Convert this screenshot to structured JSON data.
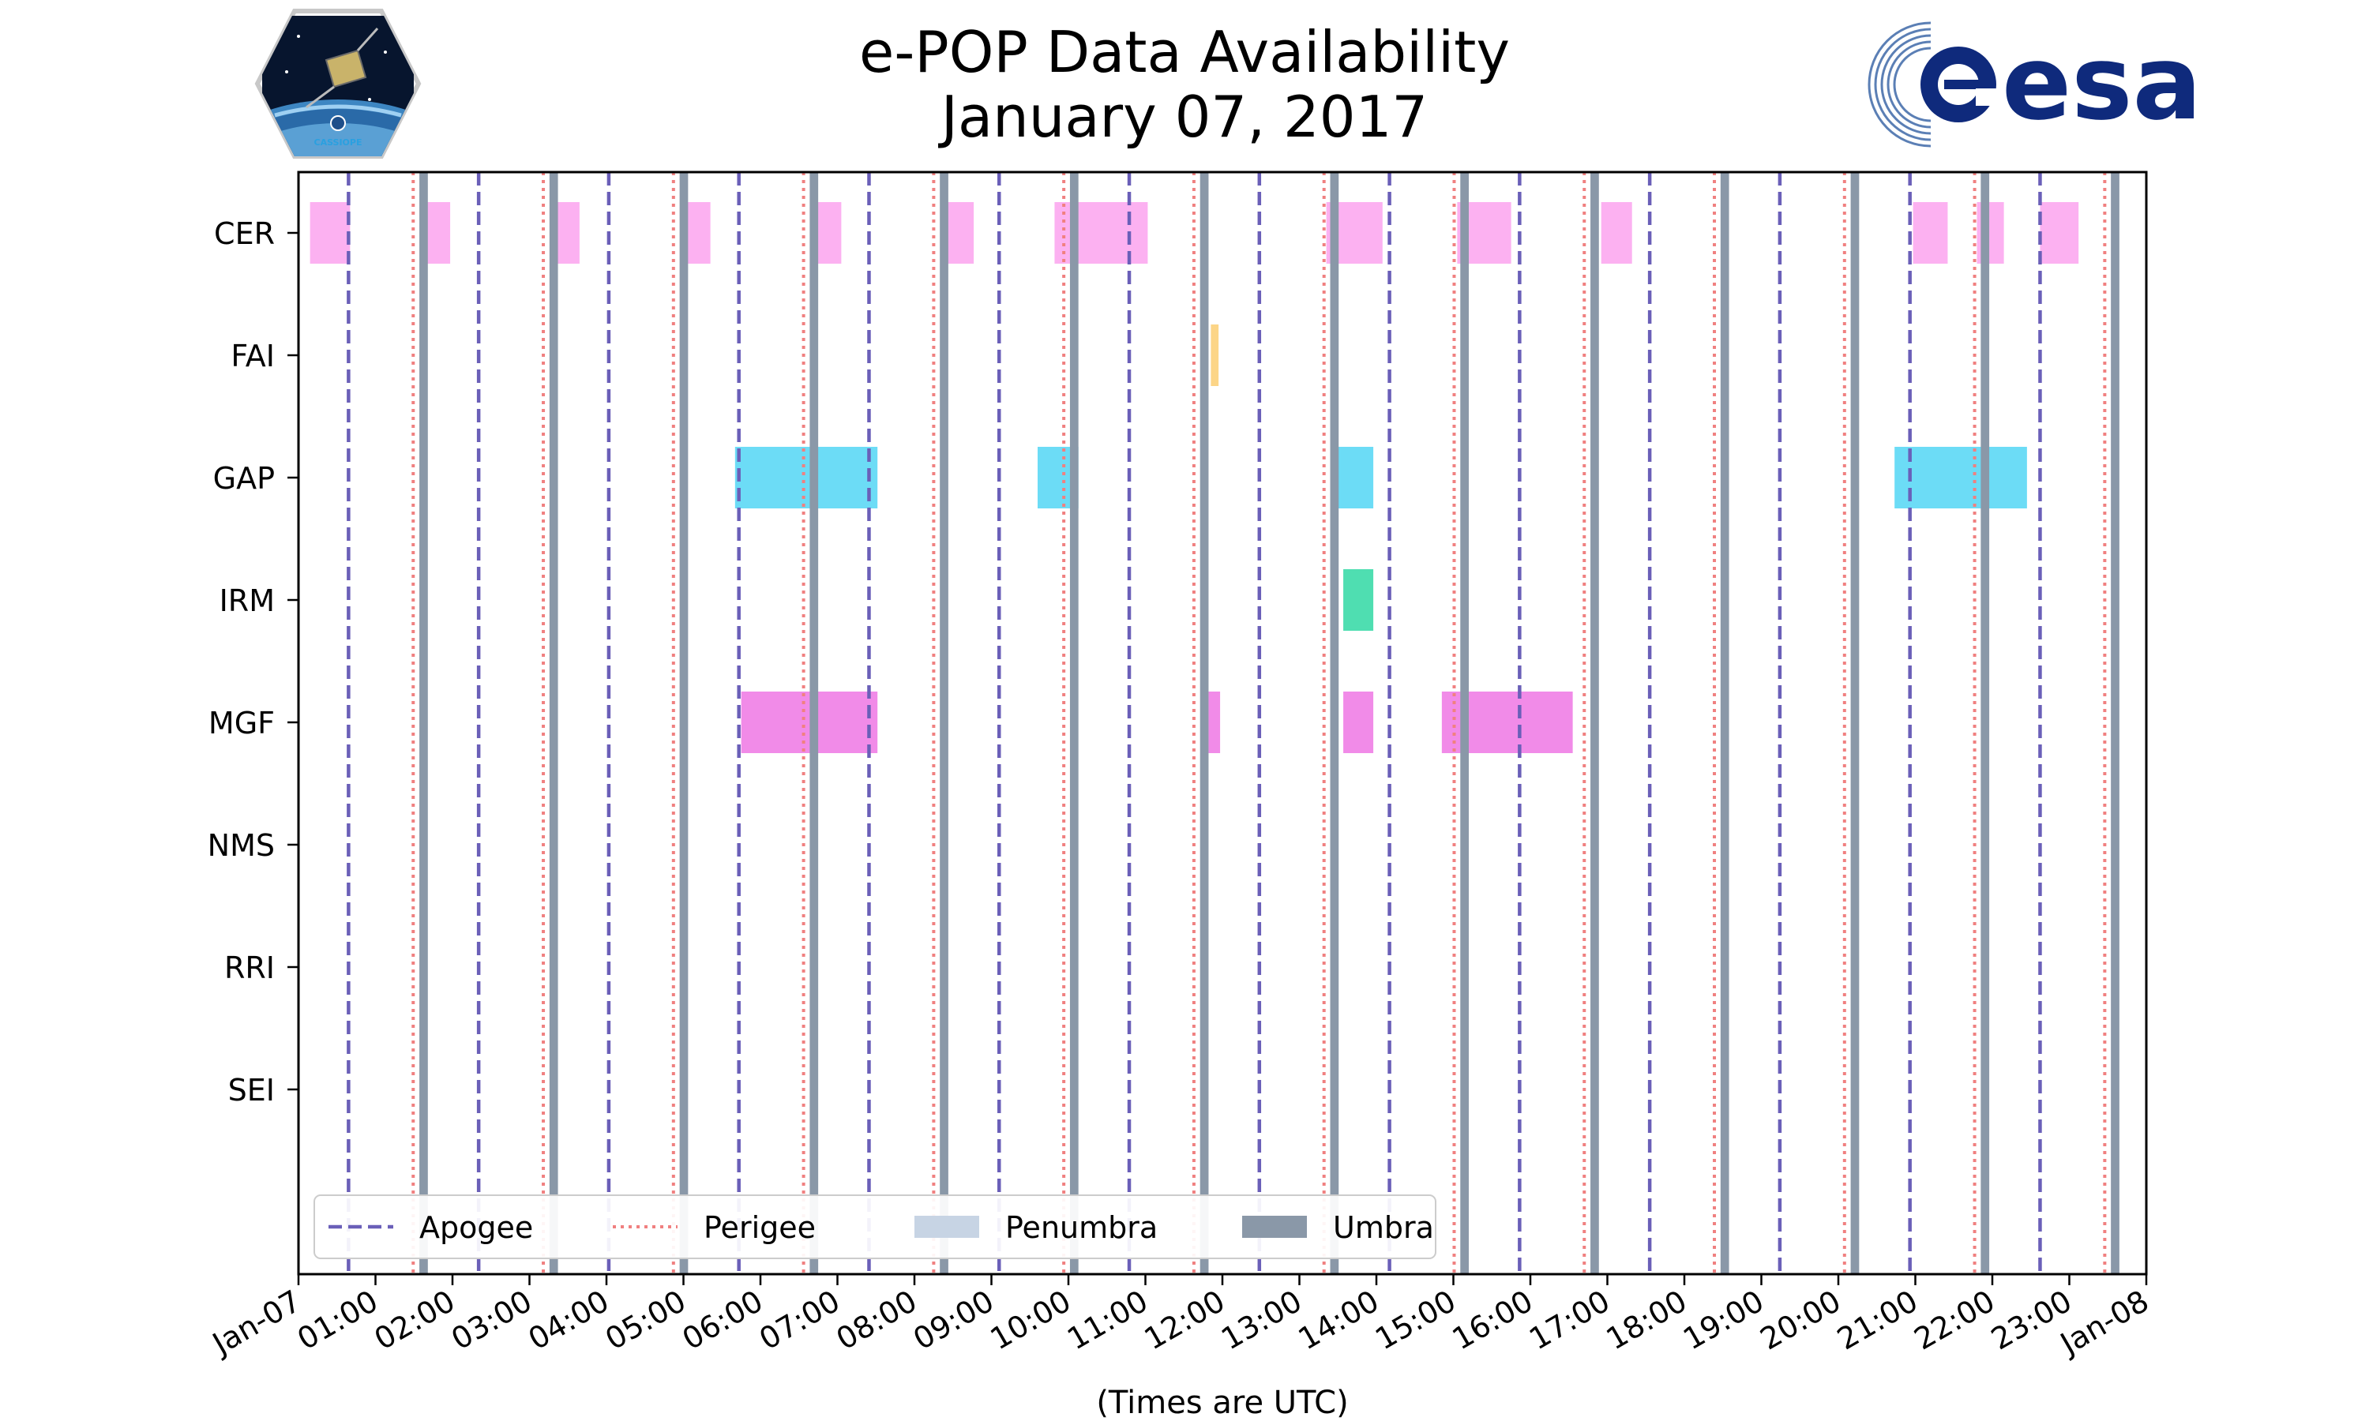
{
  "chart_data": {
    "type": "timeline",
    "title": "e-POP Data Availability",
    "subtitle": "January 07, 2017",
    "xlabel": "(Times are UTC)",
    "x_range_hours": [
      0,
      24
    ],
    "x_tick_labels": [
      "Jan-07",
      "01:00",
      "02:00",
      "03:00",
      "04:00",
      "05:00",
      "06:00",
      "07:00",
      "08:00",
      "09:00",
      "10:00",
      "11:00",
      "12:00",
      "13:00",
      "14:00",
      "15:00",
      "16:00",
      "17:00",
      "18:00",
      "19:00",
      "20:00",
      "21:00",
      "22:00",
      "23:00",
      "Jan-08"
    ],
    "instruments": [
      "CER",
      "FAI",
      "GAP",
      "IRM",
      "MGF",
      "NMS",
      "RRI",
      "SEI"
    ],
    "apogee_hours": [
      0.65,
      2.34,
      4.03,
      5.72,
      7.41,
      9.1,
      10.79,
      12.48,
      14.17,
      15.86,
      17.55,
      19.24,
      20.93,
      22.62
    ],
    "perigee_hours": [
      1.49,
      3.18,
      4.87,
      6.56,
      8.25,
      9.94,
      11.63,
      13.32,
      15.01,
      16.7,
      18.39,
      20.08,
      21.77,
      23.46
    ],
    "umbra_hours": [
      [
        1.57,
        1.68
      ],
      [
        3.26,
        3.37
      ],
      [
        4.95,
        5.06
      ],
      [
        6.64,
        6.75
      ],
      [
        8.33,
        8.44
      ],
      [
        10.02,
        10.13
      ],
      [
        11.71,
        11.82
      ],
      [
        13.4,
        13.51
      ],
      [
        15.09,
        15.2
      ],
      [
        16.78,
        16.89
      ],
      [
        18.47,
        18.58
      ],
      [
        20.16,
        20.27
      ],
      [
        21.85,
        21.96
      ],
      [
        23.54,
        23.65
      ]
    ],
    "series": [
      {
        "name": "CER",
        "color": "#fca8f0",
        "intervals": [
          [
            0.15,
            0.67
          ],
          [
            1.63,
            1.97
          ],
          [
            3.33,
            3.65
          ],
          [
            5.02,
            5.35
          ],
          [
            6.72,
            7.05
          ],
          [
            8.42,
            8.77
          ],
          [
            9.82,
            11.03
          ],
          [
            13.35,
            14.08
          ],
          [
            15.05,
            15.75
          ],
          [
            16.92,
            17.32
          ],
          [
            20.97,
            21.42
          ],
          [
            21.8,
            22.15
          ],
          [
            22.62,
            23.12
          ]
        ]
      },
      {
        "name": "FAI",
        "color": "#fcd07a",
        "intervals": [
          [
            11.85,
            11.95
          ]
        ]
      },
      {
        "name": "GAP",
        "color": "#5cd8f5",
        "intervals": [
          [
            5.67,
            7.52
          ],
          [
            9.6,
            10.13
          ],
          [
            13.4,
            13.96
          ],
          [
            20.73,
            22.45
          ]
        ]
      },
      {
        "name": "IRM",
        "color": "#3cdaa8",
        "intervals": [
          [
            13.57,
            13.96
          ]
        ]
      },
      {
        "name": "MGF",
        "color": "#f07ee6",
        "intervals": [
          [
            5.75,
            7.52
          ],
          [
            11.82,
            11.97
          ],
          [
            13.57,
            13.96
          ],
          [
            14.85,
            16.55
          ]
        ]
      },
      {
        "name": "NMS",
        "color": "#cccccc",
        "intervals": []
      },
      {
        "name": "RRI",
        "color": "#cccccc",
        "intervals": []
      },
      {
        "name": "SEI",
        "color": "#cccccc",
        "intervals": []
      }
    ],
    "legend": {
      "position": "bottom-left",
      "entries": [
        {
          "label": "Apogee",
          "style": "dashed",
          "color": "#6a5fb8"
        },
        {
          "label": "Perigee",
          "style": "dotted",
          "color": "#f08080"
        },
        {
          "label": "Penumbra",
          "style": "patch",
          "color": "#c7d4e4"
        },
        {
          "label": "Umbra",
          "style": "patch",
          "color": "#8a98a8"
        }
      ]
    },
    "colors": {
      "apogee": "#6a5fb8",
      "perigee": "#f08080",
      "umbra": "#8a98a8",
      "penumbra": "#c7d4e4"
    }
  },
  "logos": {
    "left_text": "CASSIOPE",
    "right_text": "esa"
  }
}
